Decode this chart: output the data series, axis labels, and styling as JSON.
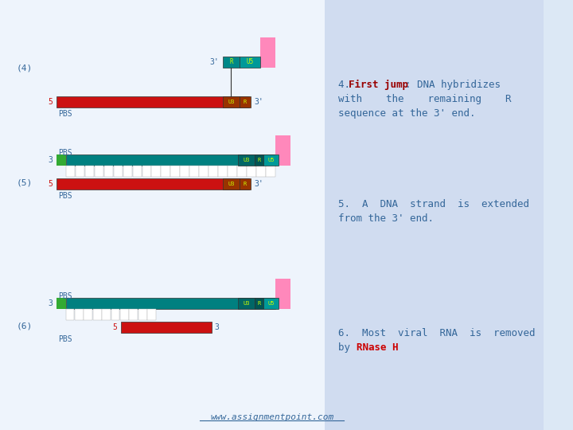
{
  "bg_color": "#dce8f5",
  "left_bg": "#e8f0fa",
  "right_bg": "#ccd8ee",
  "title_text": "4. First jump: DNA hybridizes with the remaining R sequence at the 3' end.",
  "text5": "5. A DNA strand is extended\nfrom the 3' end.",
  "text6": "6. Most viral RNA is removed\nby RNase H",
  "rnase_color": "#cc0000",
  "text_color": "#336699",
  "label_color": "#336699",
  "bold_color": "#990000",
  "url_text": "www.assignmentpoint.com",
  "url_color": "#336699",
  "colors": {
    "red": "#cc1111",
    "teal": "#008080",
    "green": "#33aa33",
    "pink": "#ff88bb",
    "dark_red": "#aa0000",
    "white": "#ffffff",
    "black": "#000000",
    "label_yellow": "#ccff00"
  }
}
